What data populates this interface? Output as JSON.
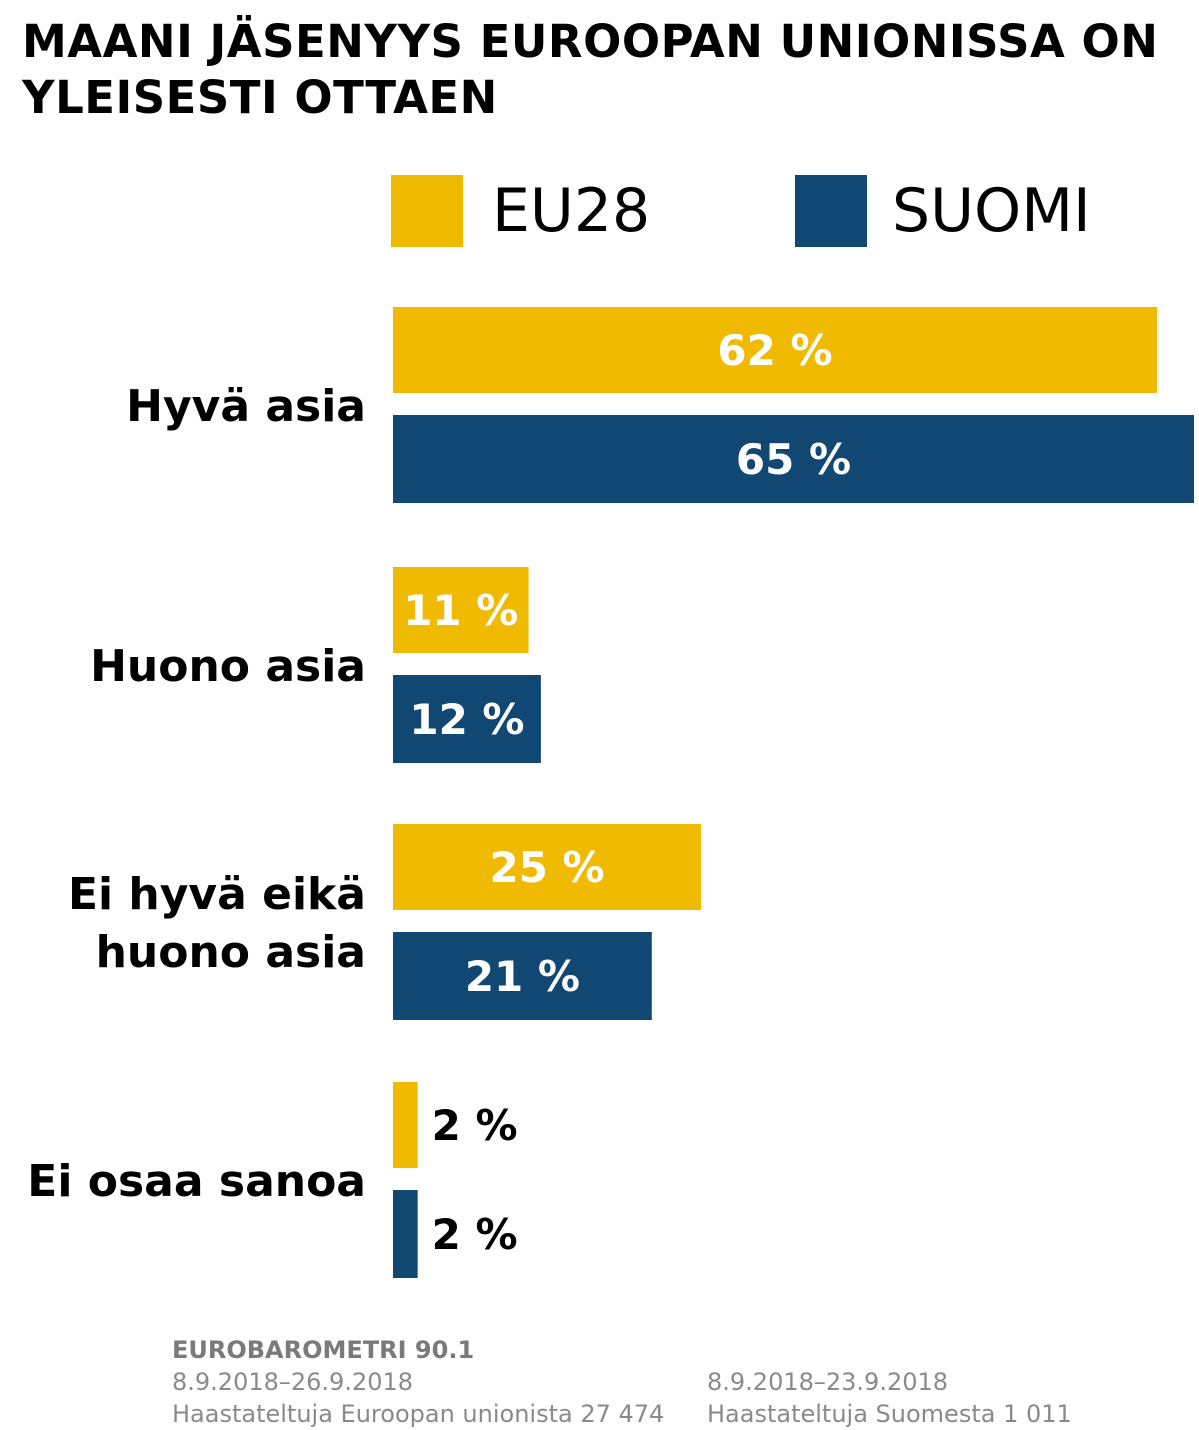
{
  "title": "MAANI JÄSENYYS EUROOPAN UNIONISSA ON YLEISESTI OTTAEN",
  "colors": {
    "eu28": "#f0ba00",
    "suomi": "#114773"
  },
  "chart_data": {
    "type": "bar",
    "orientation": "horizontal",
    "title": "MAANI JÄSENYYS EUROOPAN UNIONISSA ON YLEISESTI OTTAEN",
    "categories": [
      [
        "Hyvä asia"
      ],
      [
        "Huono asia"
      ],
      [
        "Ei hyvä eikä",
        "huono asia"
      ],
      [
        "Ei osaa sanoa"
      ]
    ],
    "series": [
      {
        "name": "EU28",
        "values": [
          62,
          11,
          25,
          2
        ],
        "labels": [
          "62 %",
          "11 %",
          "25 %",
          "2 %"
        ]
      },
      {
        "name": "SUOMI",
        "values": [
          65,
          12,
          21,
          2
        ],
        "labels": [
          "65 %",
          "12 %",
          "21 %",
          "2 %"
        ]
      }
    ],
    "xlim": [
      0,
      65
    ],
    "grid": false,
    "legend": "top"
  },
  "footer": {
    "source": "EUROBAROMETRI 90.1",
    "left": {
      "dates": "8.9.2018–26.9.2018",
      "sample": "Haastateltuja Euroopan unionista 27 474"
    },
    "right": {
      "dates": "8.9.2018–23.9.2018",
      "sample": "Haastateltuja Suomesta 1 011"
    }
  }
}
